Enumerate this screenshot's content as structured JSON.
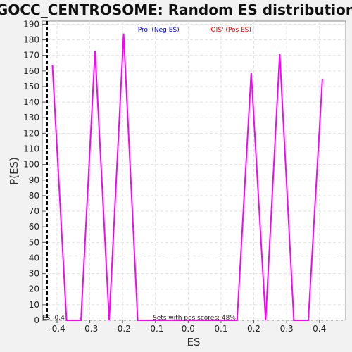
{
  "chart_data": {
    "type": "line",
    "title": "GOCC_CENTROSOME: Random ES distribution",
    "xlabel": "ES",
    "ylabel": "P(ES)",
    "xlim": [
      -0.445,
      0.48
    ],
    "ylim": [
      0,
      192
    ],
    "x_ticks": [
      -0.4,
      -0.3,
      -0.2,
      -0.1,
      0.0,
      0.1,
      0.2,
      0.3,
      0.4
    ],
    "x_tick_labels": [
      "-0.4",
      "-0.3",
      "-0.2",
      "-0.1",
      "0.0",
      "0.1",
      "0.2",
      "0.3",
      "0.4"
    ],
    "y_ticks": [
      0,
      10,
      20,
      30,
      40,
      50,
      60,
      70,
      80,
      90,
      100,
      110,
      120,
      130,
      140,
      150,
      160,
      170,
      180,
      190
    ],
    "grid": true,
    "legend_neg": "'Pro' (Neg ES)",
    "legend_pos": "'OIS' (Pos ES)",
    "legend_neg_color": "#0000cc",
    "legend_pos_color": "#ff0000",
    "line_color": "#ff00ff",
    "observed_es": -0.43,
    "observed_es_label": "ES -0.4",
    "annotation": "Sets with pos scores: 48%",
    "series": [
      {
        "x": [
          -0.414,
          -0.371,
          -0.327,
          -0.284,
          -0.241,
          -0.197,
          -0.154,
          -0.111,
          -0.068,
          -0.024,
          0.019,
          0.062,
          0.106,
          0.149,
          0.192,
          0.236,
          0.279,
          0.322,
          0.366,
          0.409
        ],
        "y": [
          164,
          0,
          0,
          173,
          0,
          184,
          0,
          0,
          0,
          0,
          0,
          0,
          0,
          0,
          159,
          0,
          171,
          0,
          0,
          155
        ]
      }
    ]
  }
}
